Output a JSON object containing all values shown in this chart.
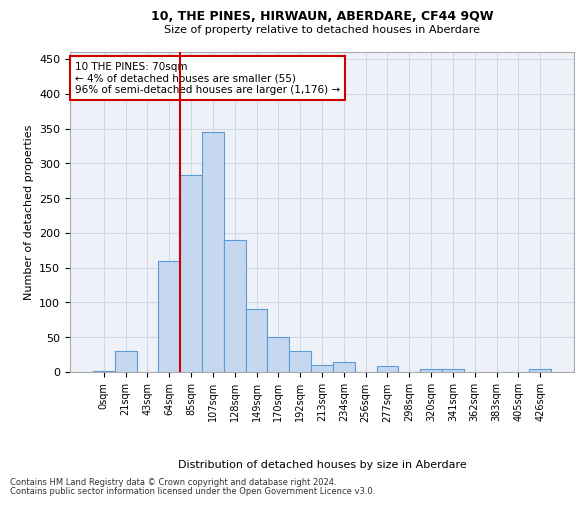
{
  "title": "10, THE PINES, HIRWAUN, ABERDARE, CF44 9QW",
  "subtitle": "Size of property relative to detached houses in Aberdare",
  "xlabel": "Distribution of detached houses by size in Aberdare",
  "ylabel": "Number of detached properties",
  "footer_line1": "Contains HM Land Registry data © Crown copyright and database right 2024.",
  "footer_line2": "Contains public sector information licensed under the Open Government Licence v3.0.",
  "bar_labels": [
    "0sqm",
    "21sqm",
    "43sqm",
    "64sqm",
    "85sqm",
    "107sqm",
    "128sqm",
    "149sqm",
    "170sqm",
    "192sqm",
    "213sqm",
    "234sqm",
    "256sqm",
    "277sqm",
    "298sqm",
    "320sqm",
    "341sqm",
    "362sqm",
    "383sqm",
    "405sqm",
    "426sqm"
  ],
  "bar_values": [
    2,
    30,
    0,
    160,
    283,
    345,
    190,
    90,
    50,
    30,
    10,
    15,
    0,
    9,
    0,
    5,
    5,
    0,
    0,
    0,
    5
  ],
  "bar_color": "#c5d8f0",
  "bar_edge_color": "#5b9bd5",
  "ylim": [
    0,
    460
  ],
  "yticks": [
    0,
    50,
    100,
    150,
    200,
    250,
    300,
    350,
    400,
    450
  ],
  "red_line_bin_index": 3,
  "annotation_text_line1": "10 THE PINES: 70sqm",
  "annotation_text_line2": "← 4% of detached houses are smaller (55)",
  "annotation_text_line3": "96% of semi-detached houses are larger (1,176) →",
  "red_line_color": "#cc0000",
  "annotation_box_edge_color": "#cc0000",
  "grid_color": "#d0d8e8",
  "background_color": "#eef2f8"
}
